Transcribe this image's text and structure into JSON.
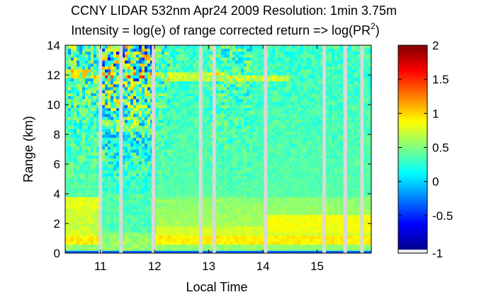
{
  "chart_data": {
    "type": "heatmap",
    "title_line1": "CCNY LIDAR 532nm Apr24 2009 Resolution: 1min 3.75m",
    "title_line2": "Intensity = log(e) of range corrected return => log(PR",
    "title_superscript": "2",
    "title_close": ")",
    "xlabel": "Local Time",
    "ylabel": "Range (km)",
    "xlim": [
      10.35,
      16.0
    ],
    "ylim": [
      0,
      14
    ],
    "x_ticks": [
      {
        "value": 11,
        "label": "11"
      },
      {
        "value": 12,
        "label": "12"
      },
      {
        "value": 13,
        "label": "13"
      },
      {
        "value": 14,
        "label": "14"
      },
      {
        "value": 15,
        "label": "15"
      }
    ],
    "y_ticks": [
      {
        "value": 0,
        "label": "0"
      },
      {
        "value": 2,
        "label": "2"
      },
      {
        "value": 4,
        "label": "4"
      },
      {
        "value": 6,
        "label": "6"
      },
      {
        "value": 8,
        "label": "8"
      },
      {
        "value": 10,
        "label": "10"
      },
      {
        "value": 12,
        "label": "12"
      },
      {
        "value": 14,
        "label": "14"
      }
    ],
    "colorbar": {
      "range": [
        -1,
        2
      ],
      "ticks": [
        {
          "value": 2,
          "label": "2"
        },
        {
          "value": 1.5,
          "label": "1.5"
        },
        {
          "value": 1,
          "label": "1"
        },
        {
          "value": 0.5,
          "label": "0.5"
        },
        {
          "value": 0,
          "label": "0"
        },
        {
          "value": -0.5,
          "label": "-0.5"
        },
        {
          "value": -1,
          "label": "-1"
        }
      ],
      "colormap": "jet"
    },
    "no_data_gaps_time": [
      11.0,
      11.38,
      11.98,
      12.85,
      13.1,
      14.05,
      15.13,
      15.52,
      15.83
    ],
    "features": {
      "boundary_layer_top_km": 4.0,
      "cirrus_layer_km": 12.0,
      "gap_fill_color": "#d9d9d9"
    }
  }
}
